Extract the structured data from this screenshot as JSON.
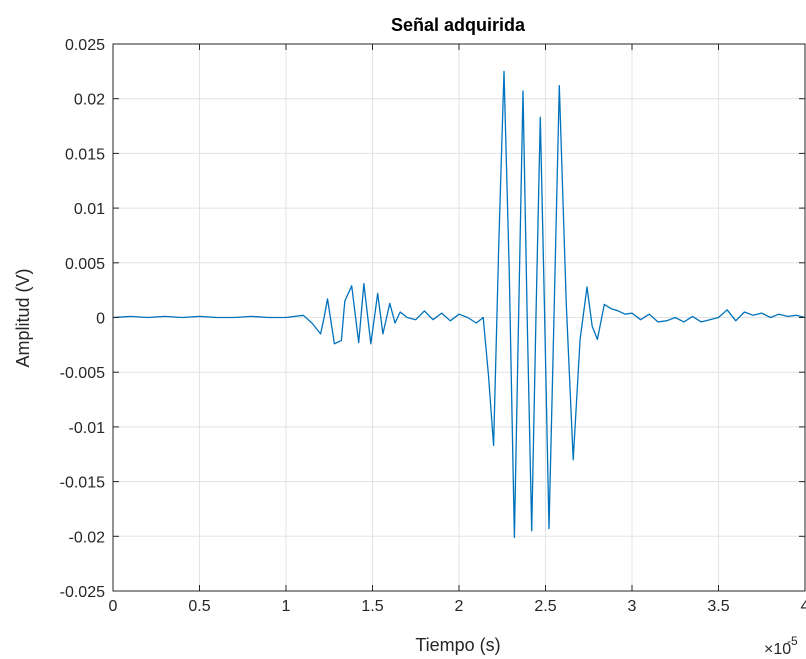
{
  "chart_data": {
    "type": "line",
    "title": "Señal adquirida",
    "xlabel": "Tiempo (s)",
    "ylabel": "Amplitud (V)",
    "x_exponent_label": "×10",
    "x_exponent_power": "-5",
    "xlim": [
      0,
      4e-05
    ],
    "ylim": [
      -0.025,
      0.025
    ],
    "x_ticks": [
      0,
      5e-06,
      1e-05,
      1.5e-05,
      2e-05,
      2.5e-05,
      3e-05,
      3.5e-05,
      4e-05
    ],
    "x_tick_labels": [
      "0",
      "0.5",
      "1",
      "1.5",
      "2",
      "2.5",
      "3",
      "3.5",
      "4"
    ],
    "y_ticks": [
      0.025,
      0.02,
      0.015,
      0.01,
      0.005,
      0,
      -0.005,
      -0.01,
      -0.015,
      -0.02,
      -0.025
    ],
    "y_tick_labels": [
      "0.025",
      "0.02",
      "0.015",
      "0.01",
      "0.005",
      "0",
      "-0.005",
      "-0.01",
      "-0.015",
      "-0.02",
      "-0.025"
    ],
    "grid": true,
    "line_color": "#0072BD",
    "series": [
      {
        "x": [
          0,
          1e-06,
          2e-06,
          3e-06,
          4e-06,
          5e-06,
          6e-06,
          7e-06,
          8e-06,
          9e-06,
          1e-05,
          1.05e-05,
          1.1e-05,
          1.15e-05,
          1.2e-05,
          1.22e-05,
          1.24e-05,
          1.28e-05,
          1.32e-05,
          1.34e-05,
          1.38e-05,
          1.42e-05,
          1.45e-05,
          1.49e-05,
          1.53e-05,
          1.56e-05,
          1.6e-05,
          1.63e-05,
          1.66e-05,
          1.7e-05,
          1.75e-05,
          1.8e-05,
          1.85e-05,
          1.9e-05,
          1.95e-05,
          2e-05,
          2.05e-05,
          2.1e-05,
          2.14e-05,
          2.17e-05,
          2.2e-05,
          2.23e-05,
          2.26e-05,
          2.29e-05,
          2.32e-05,
          2.345e-05,
          2.37e-05,
          2.395e-05,
          2.42e-05,
          2.445e-05,
          2.47e-05,
          2.495e-05,
          2.52e-05,
          2.55e-05,
          2.58e-05,
          2.62e-05,
          2.66e-05,
          2.7e-05,
          2.74e-05,
          2.77e-05,
          2.8e-05,
          2.84e-05,
          2.88e-05,
          2.92e-05,
          2.96e-05,
          3e-05,
          3.05e-05,
          3.1e-05,
          3.15e-05,
          3.2e-05,
          3.25e-05,
          3.3e-05,
          3.35e-05,
          3.4e-05,
          3.45e-05,
          3.5e-05,
          3.55e-05,
          3.6e-05,
          3.65e-05,
          3.7e-05,
          3.75e-05,
          3.8e-05,
          3.85e-05,
          3.9e-05,
          3.95e-05,
          4e-05
        ],
        "y": [
          0,
          0.0001,
          0,
          0.0001,
          0,
          0.0001,
          0,
          0,
          0.0001,
          0,
          0,
          0.0001,
          0.0002,
          -0.0005,
          -0.0015,
          0,
          0.0017,
          -0.0024,
          -0.0021,
          0.0015,
          0.0029,
          -0.0023,
          0.0031,
          -0.0024,
          0.0022,
          -0.0015,
          0.0013,
          -0.0005,
          0.0005,
          0,
          -0.0002,
          0.0006,
          -0.0002,
          0.0004,
          -0.0003,
          0.0003,
          0,
          -0.0005,
          0,
          -0.0052,
          -0.0117,
          0.0068,
          0.0225,
          0.0044,
          -0.0201,
          0.0005,
          0.0207,
          -0.0005,
          -0.0195,
          0.0002,
          0.0183,
          0.0003,
          -0.0193,
          0.0005,
          0.0212,
          0.0012,
          -0.013,
          -0.002,
          0.0028,
          -0.0008,
          -0.002,
          0.0012,
          0.0008,
          0.0006,
          0.0003,
          0.0004,
          -0.0002,
          0.0003,
          -0.0004,
          -0.0003,
          0,
          -0.0004,
          0.0001,
          -0.0004,
          -0.0002,
          0,
          0.0007,
          -0.0003,
          0.0005,
          0.0002,
          0.0004,
          0,
          0.0003,
          0.0001,
          0.0002,
          0
        ]
      }
    ]
  }
}
